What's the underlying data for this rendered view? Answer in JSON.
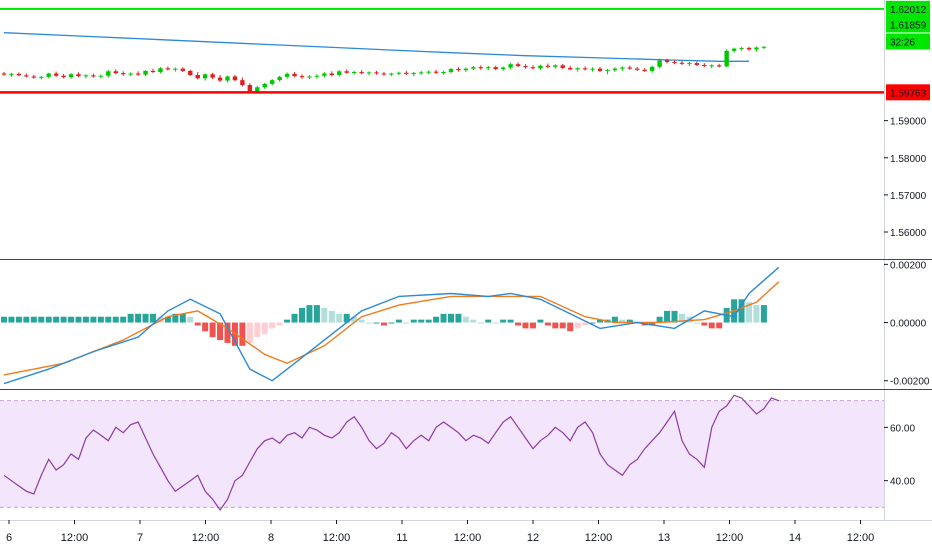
{
  "chart_data": {
    "type": "candlestick",
    "price_panel": {
      "ylim": [
        1.553,
        1.6225
      ],
      "y_ticks": [
        "1.59000",
        "1.58000",
        "1.57000",
        "1.56000"
      ],
      "resistance_line": {
        "value": 1.62012,
        "label": "1.62012",
        "color": "#00e600"
      },
      "support_line": {
        "value": 1.59763,
        "label": "1.59763",
        "color": "#ff0000"
      },
      "current_price": {
        "value": 1.61859,
        "label": "1.61859",
        "countdown": "32:26",
        "color": "#00e600"
      },
      "moving_average_color": "#2b8ad6",
      "up_color": "#00c800",
      "down_color": "#e02020",
      "candles": [
        [
          1.6027,
          1.6031,
          1.6021,
          1.6024
        ],
        [
          1.6024,
          1.6029,
          1.6018,
          1.6026
        ],
        [
          1.6026,
          1.603,
          1.602,
          1.6022
        ],
        [
          1.6022,
          1.6027,
          1.6016,
          1.6019
        ],
        [
          1.6019,
          1.6024,
          1.6013,
          1.6016
        ],
        [
          1.6016,
          1.6021,
          1.6011,
          1.6018
        ],
        [
          1.6018,
          1.6029,
          1.6014,
          1.6027
        ],
        [
          1.6027,
          1.6032,
          1.6018,
          1.6021
        ],
        [
          1.6021,
          1.6026,
          1.6014,
          1.6017
        ],
        [
          1.6017,
          1.6028,
          1.6013,
          1.6025
        ],
        [
          1.6025,
          1.603,
          1.6017,
          1.602
        ],
        [
          1.602,
          1.6025,
          1.6014,
          1.6022
        ],
        [
          1.6022,
          1.6027,
          1.6016,
          1.6019
        ],
        [
          1.6019,
          1.6024,
          1.6014,
          1.6021
        ],
        [
          1.6021,
          1.6037,
          1.6016,
          1.6033
        ],
        [
          1.6033,
          1.6038,
          1.6025,
          1.6028
        ],
        [
          1.6028,
          1.6033,
          1.6021,
          1.6025
        ],
        [
          1.6025,
          1.603,
          1.602,
          1.6027
        ],
        [
          1.6027,
          1.6033,
          1.602,
          1.6024
        ],
        [
          1.6024,
          1.6036,
          1.602,
          1.6034
        ],
        [
          1.6034,
          1.604,
          1.6028,
          1.6031
        ],
        [
          1.6031,
          1.6044,
          1.6027,
          1.6041
        ],
        [
          1.6041,
          1.6046,
          1.6035,
          1.6038
        ],
        [
          1.6038,
          1.6043,
          1.6032,
          1.604
        ],
        [
          1.604,
          1.6044,
          1.6031,
          1.6034
        ],
        [
          1.6034,
          1.6037,
          1.602,
          1.6023
        ],
        [
          1.6023,
          1.6031,
          1.6011,
          1.6014
        ],
        [
          1.6014,
          1.6027,
          1.6008,
          1.6025
        ],
        [
          1.6025,
          1.6029,
          1.6012,
          1.6016
        ],
        [
          1.6016,
          1.6023,
          1.6004,
          1.6008
        ],
        [
          1.6008,
          1.6021,
          1.6003,
          1.6019
        ],
        [
          1.6019,
          1.6023,
          1.6006,
          1.6009
        ],
        [
          1.6009,
          1.6016,
          1.5992,
          1.5996
        ],
        [
          1.5996,
          1.6001,
          1.5973,
          1.5977
        ],
        [
          1.5977,
          1.5994,
          1.5974,
          1.599
        ],
        [
          1.599,
          1.6002,
          1.5985,
          1.5999
        ],
        [
          1.5999,
          1.6012,
          1.5995,
          1.6009
        ],
        [
          1.6009,
          1.6021,
          1.6005,
          1.6018
        ],
        [
          1.6018,
          1.603,
          1.6013,
          1.6026
        ],
        [
          1.6026,
          1.6031,
          1.6017,
          1.602
        ],
        [
          1.602,
          1.6025,
          1.6013,
          1.6017
        ],
        [
          1.6017,
          1.6022,
          1.6012,
          1.6019
        ],
        [
          1.6019,
          1.6025,
          1.6013,
          1.6021
        ],
        [
          1.6021,
          1.6031,
          1.6016,
          1.6027
        ],
        [
          1.6027,
          1.6033,
          1.6019,
          1.6023
        ],
        [
          1.6023,
          1.6036,
          1.6019,
          1.6033
        ],
        [
          1.6033,
          1.6038,
          1.6026,
          1.6029
        ],
        [
          1.6029,
          1.6034,
          1.6024,
          1.6031
        ],
        [
          1.6031,
          1.6036,
          1.6025,
          1.6028
        ],
        [
          1.6028,
          1.6033,
          1.6022,
          1.603
        ],
        [
          1.603,
          1.6034,
          1.6024,
          1.6027
        ],
        [
          1.6027,
          1.6031,
          1.6021,
          1.6025
        ],
        [
          1.6025,
          1.6029,
          1.602,
          1.6027
        ],
        [
          1.6027,
          1.6032,
          1.6022,
          1.6029
        ],
        [
          1.6029,
          1.6034,
          1.6023,
          1.6026
        ],
        [
          1.6026,
          1.6031,
          1.602,
          1.6028
        ],
        [
          1.6028,
          1.6034,
          1.6023,
          1.603
        ],
        [
          1.603,
          1.6035,
          1.6025,
          1.6032
        ],
        [
          1.6032,
          1.6037,
          1.6026,
          1.6029
        ],
        [
          1.6029,
          1.6034,
          1.6024,
          1.6031
        ],
        [
          1.6031,
          1.6042,
          1.6027,
          1.6039
        ],
        [
          1.6039,
          1.6044,
          1.6032,
          1.6036
        ],
        [
          1.6036,
          1.6043,
          1.6031,
          1.604
        ],
        [
          1.604,
          1.6047,
          1.6036,
          1.6044
        ],
        [
          1.6044,
          1.6049,
          1.6037,
          1.6041
        ],
        [
          1.6041,
          1.6047,
          1.6036,
          1.6044
        ],
        [
          1.6044,
          1.6048,
          1.6036,
          1.6039
        ],
        [
          1.6039,
          1.6046,
          1.6034,
          1.6043
        ],
        [
          1.6043,
          1.6056,
          1.6038,
          1.6052
        ],
        [
          1.6052,
          1.6057,
          1.6044,
          1.6047
        ],
        [
          1.6047,
          1.6052,
          1.604,
          1.6044
        ],
        [
          1.6044,
          1.6049,
          1.6038,
          1.6041
        ],
        [
          1.6041,
          1.6051,
          1.6036,
          1.6048
        ],
        [
          1.6048,
          1.6054,
          1.6041,
          1.6045
        ],
        [
          1.6045,
          1.6052,
          1.604,
          1.6049
        ],
        [
          1.6049,
          1.6053,
          1.6039,
          1.6042
        ],
        [
          1.6042,
          1.6048,
          1.6036,
          1.6038
        ],
        [
          1.6038,
          1.6044,
          1.6032,
          1.6041
        ],
        [
          1.6041,
          1.6046,
          1.6035,
          1.6038
        ],
        [
          1.6038,
          1.6044,
          1.6032,
          1.604
        ],
        [
          1.604,
          1.6045,
          1.6031,
          1.6034
        ],
        [
          1.6034,
          1.6039,
          1.6025,
          1.6036
        ],
        [
          1.6036,
          1.6044,
          1.6031,
          1.604
        ],
        [
          1.604,
          1.6046,
          1.6034,
          1.6043
        ],
        [
          1.6043,
          1.6048,
          1.6037,
          1.604
        ],
        [
          1.604,
          1.6045,
          1.6034,
          1.6037
        ],
        [
          1.6037,
          1.6042,
          1.6031,
          1.6034
        ],
        [
          1.6034,
          1.6048,
          1.6029,
          1.6045
        ],
        [
          1.6045,
          1.6067,
          1.6041,
          1.6062
        ],
        [
          1.6062,
          1.6067,
          1.6054,
          1.6058
        ],
        [
          1.6058,
          1.6063,
          1.6052,
          1.6056
        ],
        [
          1.6056,
          1.6061,
          1.605,
          1.6053
        ],
        [
          1.6053,
          1.6058,
          1.6047,
          1.6055
        ],
        [
          1.6055,
          1.6059,
          1.6047,
          1.605
        ],
        [
          1.605,
          1.6055,
          1.6044,
          1.6047
        ],
        [
          1.6047,
          1.6052,
          1.6041,
          1.6049
        ],
        [
          1.6049,
          1.6053,
          1.6043,
          1.6046
        ],
        [
          1.6046,
          1.6092,
          1.6044,
          1.6088
        ],
        [
          1.6088,
          1.6097,
          1.6083,
          1.6094
        ],
        [
          1.6094,
          1.6098,
          1.6089,
          1.6096
        ],
        [
          1.6096,
          1.6099,
          1.6088,
          1.6092
        ],
        [
          1.6092,
          1.61,
          1.6086,
          1.6097
        ],
        [
          1.6097,
          1.6101,
          1.6093,
          1.6099
        ]
      ],
      "moving_average": [
        [
          0,
          1.6137
        ],
        [
          10,
          1.6128
        ],
        [
          20,
          1.6119
        ],
        [
          30,
          1.611
        ],
        [
          40,
          1.6101
        ],
        [
          50,
          1.6092
        ],
        [
          60,
          1.6083
        ],
        [
          70,
          1.6075
        ],
        [
          80,
          1.6069
        ],
        [
          90,
          1.6063
        ],
        [
          96,
          1.606
        ],
        [
          100,
          1.606
        ]
      ]
    },
    "macd_panel": {
      "ylim": [
        -0.00225,
        0.00215
      ],
      "y_ticks": [
        "0.00200",
        "0.00000",
        "-0.00200"
      ],
      "zero_line": 0,
      "macd_color": "#2b8ad6",
      "signal_color": "#f07c1e",
      "hist_up_strong": "#26a69a",
      "hist_up_weak": "#b2dfdb",
      "hist_down_strong": "#ef5350",
      "hist_down_weak": "#ffcdd2",
      "macd": [
        [
          0,
          -0.0021
        ],
        [
          6,
          -0.0016
        ],
        [
          12,
          -0.001
        ],
        [
          18,
          -0.0005
        ],
        [
          22,
          0.0004
        ],
        [
          25,
          0.0008
        ],
        [
          29,
          0.0003
        ],
        [
          33,
          -0.0016
        ],
        [
          36,
          -0.002
        ],
        [
          39,
          -0.0014
        ],
        [
          44,
          -0.0004
        ],
        [
          48,
          0.0004
        ],
        [
          53,
          0.0009
        ],
        [
          60,
          0.001
        ],
        [
          65,
          0.0009
        ],
        [
          68,
          0.001
        ],
        [
          72,
          0.0008
        ],
        [
          76,
          0.0003
        ],
        [
          80,
          -0.0002
        ],
        [
          85,
          0.0
        ],
        [
          90,
          -0.0002
        ],
        [
          94,
          0.0004
        ],
        [
          98,
          0.0002
        ],
        [
          100,
          0.001
        ],
        [
          104,
          0.0019
        ]
      ],
      "signal": [
        [
          0,
          -0.0018
        ],
        [
          8,
          -0.0014
        ],
        [
          16,
          -0.0006
        ],
        [
          22,
          0.0002
        ],
        [
          26,
          0.0004
        ],
        [
          30,
          -0.0002
        ],
        [
          35,
          -0.0011
        ],
        [
          38,
          -0.0014
        ],
        [
          43,
          -0.0008
        ],
        [
          48,
          0.0002
        ],
        [
          53,
          0.0006
        ],
        [
          60,
          0.0009
        ],
        [
          66,
          0.0009
        ],
        [
          72,
          0.0009
        ],
        [
          78,
          0.0002
        ],
        [
          82,
          0.0
        ],
        [
          88,
          0.0
        ],
        [
          94,
          0.0001
        ],
        [
          98,
          0.0004
        ],
        [
          101,
          0.0007
        ],
        [
          104,
          0.0014
        ]
      ],
      "histogram": [
        0.0002,
        0.0002,
        0.0002,
        0.0002,
        0.0002,
        0.0002,
        0.0002,
        0.0002,
        0.0002,
        0.0002,
        0.0002,
        0.0002,
        0.0002,
        0.0002,
        0.0002,
        0.0002,
        0.0002,
        0.0003,
        0.0003,
        0.0003,
        0.0003,
        0.0002,
        0.0002,
        0.0003,
        0.0003,
        0.0002,
        -0.0001,
        -0.0003,
        -0.0005,
        -0.0006,
        -0.0007,
        -0.0008,
        -0.0008,
        -0.0007,
        -0.0005,
        -0.0004,
        -0.0002,
        -0.0001,
        0.0001,
        0.0003,
        0.0005,
        0.0006,
        0.0006,
        0.0005,
        0.0004,
        0.0003,
        0.0003,
        0.0002,
        0.0001,
        0.0,
        0.0,
        -0.0001,
        0.0,
        0.0001,
        0.0,
        0.0001,
        0.0001,
        0.0001,
        0.0002,
        0.0003,
        0.0003,
        0.0003,
        0.0002,
        0.0001,
        0.0,
        0.0001,
        0.0,
        0.0001,
        0.0001,
        -0.0001,
        -0.0002,
        -0.0002,
        0.0001,
        -0.0001,
        -0.0002,
        -0.0002,
        -0.0003,
        -0.0002,
        -0.0001,
        0.0,
        0.0001,
        0.0001,
        0.0002,
        0.0001,
        0.0001,
        0.0,
        -0.0001,
        -0.0001,
        0.0002,
        0.0004,
        0.0004,
        0.0003,
        0.0002,
        0.0,
        -0.0001,
        -0.0002,
        -0.0002,
        0.0005,
        0.0008,
        0.0008,
        0.0007,
        0.0006,
        0.0006
      ]
    },
    "rsi_panel": {
      "ylim": [
        26,
        74
      ],
      "y_ticks": [
        "60.00",
        "40.00"
      ],
      "band_upper": 70,
      "band_lower": 30,
      "line_color": "#8e3aa6",
      "band_fill": "#f3e5fb",
      "band_line_color": "#c9a0dc",
      "values": [
        42,
        40,
        38,
        36,
        35,
        42,
        48,
        44,
        46,
        50,
        48,
        56,
        59,
        57,
        55,
        60,
        58,
        61,
        62,
        56,
        50,
        45,
        40,
        36,
        38,
        40,
        42,
        36,
        33,
        29,
        33,
        40,
        42,
        47,
        52,
        55,
        56,
        54,
        57,
        58,
        56,
        60,
        59,
        57,
        56,
        58,
        62,
        64,
        60,
        55,
        52,
        54,
        58,
        56,
        52,
        55,
        57,
        55,
        60,
        62,
        60,
        58,
        55,
        57,
        56,
        54,
        58,
        62,
        64,
        60,
        56,
        52,
        55,
        57,
        60,
        58,
        55,
        60,
        62,
        58,
        50,
        46,
        44,
        42,
        46,
        48,
        52,
        55,
        58,
        62,
        66,
        55,
        50,
        48,
        45,
        60,
        66,
        68,
        72,
        71,
        68,
        65,
        67,
        71,
        70
      ]
    },
    "x_axis": {
      "labels": [
        "6",
        "12:00",
        "7",
        "12:00",
        "8",
        "12:00",
        "11",
        "12:00",
        "12",
        "12:00",
        "13",
        "12:00",
        "14",
        "12:00"
      ],
      "label_positions_bars": [
        0,
        13,
        27,
        40,
        53,
        67,
        80,
        93,
        107,
        120,
        133,
        147,
        160,
        173
      ]
    }
  }
}
